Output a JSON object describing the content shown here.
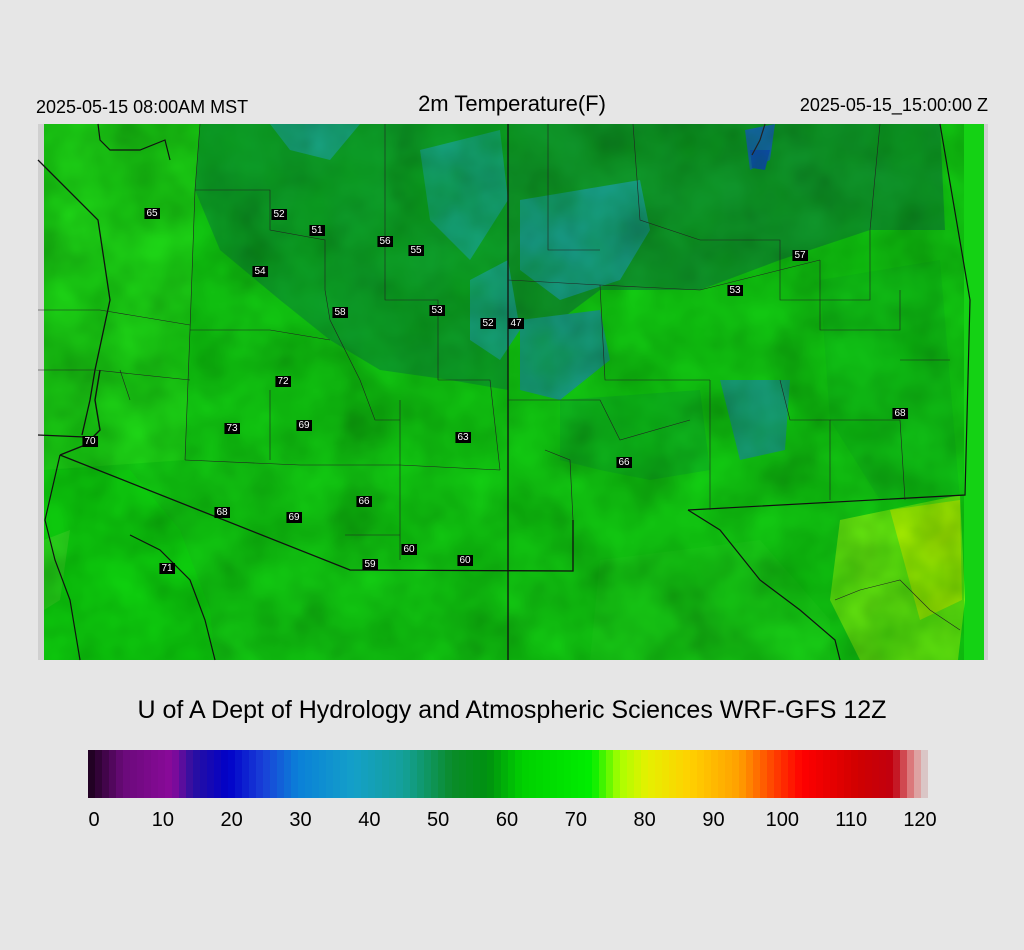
{
  "header": {
    "local_time": "2025-05-15 08:00AM MST",
    "title": "2m Temperature(F)",
    "valid_time": "2025-05-15_15:00:00 Z"
  },
  "credit": "U of A Dept of Hydrology and Atmospheric Sciences WRF-GFS 12Z",
  "colorbar": {
    "ticks": [
      "0",
      "10",
      "20",
      "30",
      "40",
      "50",
      "60",
      "70",
      "80",
      "90",
      "100",
      "110",
      "120"
    ],
    "range": [
      0,
      120
    ],
    "stops": [
      {
        "value": 0,
        "color": "#1a001a"
      },
      {
        "value": 5,
        "color": "#6a0a7a"
      },
      {
        "value": 12,
        "color": "#8a0a9a"
      },
      {
        "value": 15,
        "color": "#2a10a0"
      },
      {
        "value": 20,
        "color": "#0000c8"
      },
      {
        "value": 25,
        "color": "#1a40d8"
      },
      {
        "value": 30,
        "color": "#0a80d8"
      },
      {
        "value": 38,
        "color": "#14a0c8"
      },
      {
        "value": 45,
        "color": "#14a09a"
      },
      {
        "value": 52,
        "color": "#0a8c2a"
      },
      {
        "value": 57,
        "color": "#009010"
      },
      {
        "value": 62,
        "color": "#00d000"
      },
      {
        "value": 72,
        "color": "#00ee00"
      },
      {
        "value": 76,
        "color": "#aaff00"
      },
      {
        "value": 80,
        "color": "#e6f000"
      },
      {
        "value": 86,
        "color": "#ffd000"
      },
      {
        "value": 93,
        "color": "#ffa000"
      },
      {
        "value": 98,
        "color": "#ff4000"
      },
      {
        "value": 102,
        "color": "#ff0000"
      },
      {
        "value": 110,
        "color": "#d00000"
      },
      {
        "value": 115,
        "color": "#c00010"
      },
      {
        "value": 118,
        "color": "#e09090"
      },
      {
        "value": 120,
        "color": "#d8d8d8"
      }
    ]
  },
  "station_values": [
    "65",
    "52",
    "51",
    "56",
    "55",
    "54",
    "58",
    "53",
    "52",
    "47",
    "57",
    "53",
    "72",
    "73",
    "69",
    "63",
    "70",
    "68",
    "66",
    "66",
    "68",
    "69",
    "60",
    "59",
    "60",
    "71"
  ]
}
